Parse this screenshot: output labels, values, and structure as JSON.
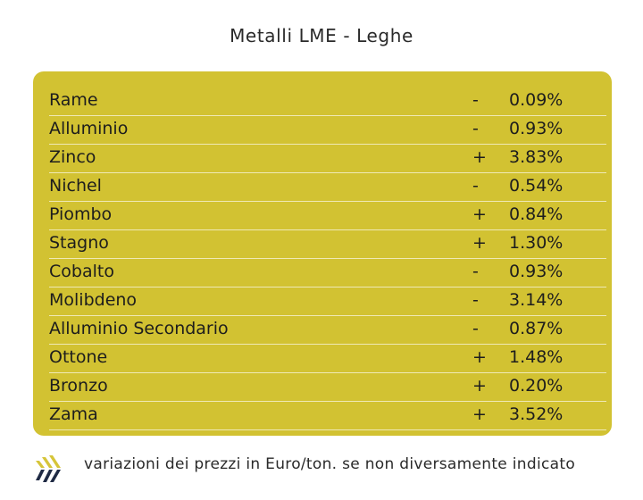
{
  "title": "Metalli LME - Leghe",
  "rows": [
    {
      "name": "Rame",
      "sign": "-",
      "value": "0.09%"
    },
    {
      "name": "Alluminio",
      "sign": "-",
      "value": "0.93%"
    },
    {
      "name": "Zinco",
      "sign": "+",
      "value": "3.83%"
    },
    {
      "name": "Nichel",
      "sign": "-",
      "value": "0.54%"
    },
    {
      "name": "Piombo",
      "sign": "+",
      "value": "0.84%"
    },
    {
      "name": "Stagno",
      "sign": "+",
      "value": "1.30%"
    },
    {
      "name": "Cobalto",
      "sign": "-",
      "value": "0.93%"
    },
    {
      "name": "Molibdeno",
      "sign": "-",
      "value": "3.14%"
    },
    {
      "name": "Alluminio Secondario",
      "sign": "-",
      "value": "0.87%"
    },
    {
      "name": "Ottone",
      "sign": "+",
      "value": "1.48%"
    },
    {
      "name": "Bronzo",
      "sign": "+",
      "value": "0.20%"
    },
    {
      "name": "Zama",
      "sign": "+",
      "value": "3.52%"
    }
  ],
  "footer": {
    "note": "variazioni dei prezzi in Euro/ton. se non diversamente indicato",
    "logo_icon": "stripes-logo-icon"
  },
  "colors": {
    "panel": "#d2c232",
    "divider": "#efe9b5",
    "logo_yellow": "#d6c53a",
    "logo_dark": "#1f2a44"
  }
}
